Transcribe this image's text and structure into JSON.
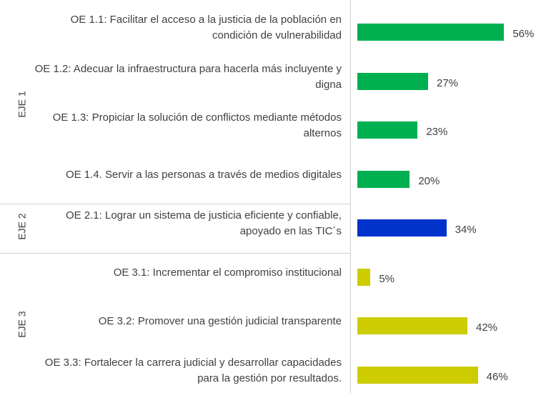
{
  "chart_data": {
    "type": "bar",
    "orientation": "horizontal",
    "categories": [
      "OE 1.1: Facilitar el acceso a la justicia de la población en condición de vulnerabilidad",
      "OE 1.2: Adecuar la infraestructura para hacerla más incluyente y digna",
      "OE 1.3: Propiciar la solución de conflictos mediante métodos alternos",
      "OE 1.4. Servir a las personas a través de medios digitales",
      "OE 2.1: Lograr un sistema de justicia eficiente y confiable, apoyado en las TIC´s",
      "OE 3.1: Incrementar el compromiso institucional",
      "OE 3.2: Promover una gestión judicial transparente",
      "OE 3.3: Fortalecer la carrera judicial y desarrollar capacidades para la gestión por resultados."
    ],
    "values": [
      56,
      27,
      23,
      20,
      34,
      5,
      42,
      46
    ],
    "value_labels": [
      "56%",
      "27%",
      "23%",
      "20%",
      "34%",
      "5%",
      "42%",
      "46%"
    ],
    "groups": [
      {
        "name": "EJE 1",
        "count": 4,
        "color": "#00b050"
      },
      {
        "name": "EJE 2",
        "count": 1,
        "color": "#0033cc"
      },
      {
        "name": "EJE 3",
        "count": 3,
        "color": "#cccc00"
      }
    ],
    "xlim": [
      0,
      60
    ]
  }
}
